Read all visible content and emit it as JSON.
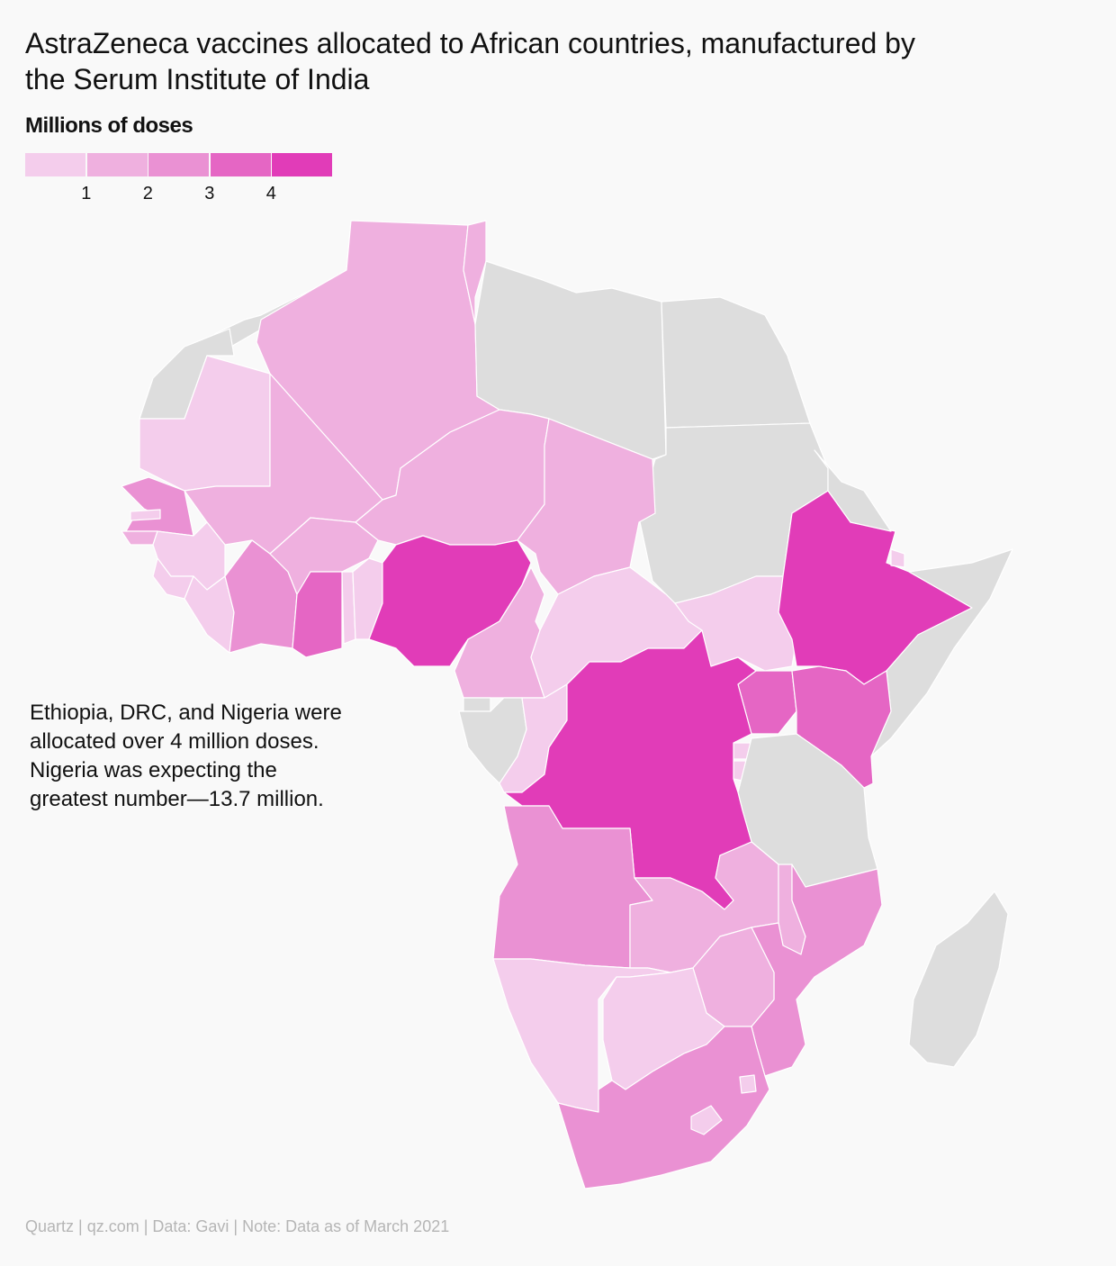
{
  "title_line1": "AstraZeneca vaccines allocated to African countries, manufactured by",
  "title_line2": "the Serum Institute of India",
  "legend": {
    "title": "Millions of doses",
    "bins": [
      {
        "color": "#f4cdec"
      },
      {
        "color": "#efb0df"
      },
      {
        "color": "#ea91d3"
      },
      {
        "color": "#e566c4"
      },
      {
        "color": "#e13cb8"
      }
    ],
    "ticks": [
      "1",
      "2",
      "3",
      "4"
    ]
  },
  "colors": {
    "no_data": "#dddddd",
    "background": "#f9f9f9"
  },
  "annotation": {
    "lines": [
      "Ethiopia, DRC, and Nigeria were",
      "allocated over 4 million doses.",
      "Nigeria was expecting the",
      "greatest number—13.7 million."
    ]
  },
  "footer": "Quartz | qz.com | Data: Gavi | Note: Data as of March 2021",
  "chart_data": {
    "type": "choropleth",
    "region": "Africa",
    "value_unit": "Millions of doses",
    "bin_thresholds": [
      1,
      2,
      3,
      4
    ],
    "notable_values": {
      "Nigeria": 13.7
    },
    "countries": [
      {
        "name": "Morocco",
        "bin": null
      },
      {
        "name": "Western Sahara",
        "bin": null
      },
      {
        "name": "Algeria",
        "bin": 1
      },
      {
        "name": "Tunisia",
        "bin": 1
      },
      {
        "name": "Libya",
        "bin": null
      },
      {
        "name": "Egypt",
        "bin": null
      },
      {
        "name": "Sudan",
        "bin": null
      },
      {
        "name": "Mauritania",
        "bin": 0
      },
      {
        "name": "Mali",
        "bin": 1
      },
      {
        "name": "Niger",
        "bin": 1
      },
      {
        "name": "Chad",
        "bin": 1
      },
      {
        "name": "Senegal",
        "bin": 2
      },
      {
        "name": "Gambia",
        "bin": 0
      },
      {
        "name": "Guinea-Bissau",
        "bin": 1
      },
      {
        "name": "Guinea",
        "bin": 0
      },
      {
        "name": "Sierra Leone",
        "bin": 0
      },
      {
        "name": "Liberia",
        "bin": 0
      },
      {
        "name": "Cote d'Ivoire",
        "bin": 2
      },
      {
        "name": "Burkina Faso",
        "bin": 1
      },
      {
        "name": "Ghana",
        "bin": 3
      },
      {
        "name": "Togo",
        "bin": 0
      },
      {
        "name": "Benin",
        "bin": 0
      },
      {
        "name": "Nigeria",
        "bin": 4
      },
      {
        "name": "Cameroon",
        "bin": 1
      },
      {
        "name": "Central African Republic",
        "bin": 0
      },
      {
        "name": "South Sudan",
        "bin": 0
      },
      {
        "name": "Ethiopia",
        "bin": 4
      },
      {
        "name": "Eritrea",
        "bin": null
      },
      {
        "name": "Djibouti",
        "bin": 0
      },
      {
        "name": "Somalia",
        "bin": null
      },
      {
        "name": "Uganda",
        "bin": 3
      },
      {
        "name": "Kenya",
        "bin": 3
      },
      {
        "name": "Rwanda",
        "bin": 0
      },
      {
        "name": "Burundi",
        "bin": 0
      },
      {
        "name": "Tanzania",
        "bin": null
      },
      {
        "name": "Equatorial Guinea",
        "bin": null
      },
      {
        "name": "Gabon",
        "bin": null
      },
      {
        "name": "Republic of the Congo",
        "bin": 0
      },
      {
        "name": "DRC",
        "bin": 4
      },
      {
        "name": "Angola",
        "bin": 2
      },
      {
        "name": "Zambia",
        "bin": 1
      },
      {
        "name": "Malawi",
        "bin": 1
      },
      {
        "name": "Mozambique",
        "bin": 2
      },
      {
        "name": "Zimbabwe",
        "bin": 1
      },
      {
        "name": "Namibia",
        "bin": 0
      },
      {
        "name": "Botswana",
        "bin": 0
      },
      {
        "name": "South Africa",
        "bin": 2
      },
      {
        "name": "Eswatini",
        "bin": 0
      },
      {
        "name": "Lesotho",
        "bin": 0
      },
      {
        "name": "Madagascar",
        "bin": null
      }
    ]
  }
}
